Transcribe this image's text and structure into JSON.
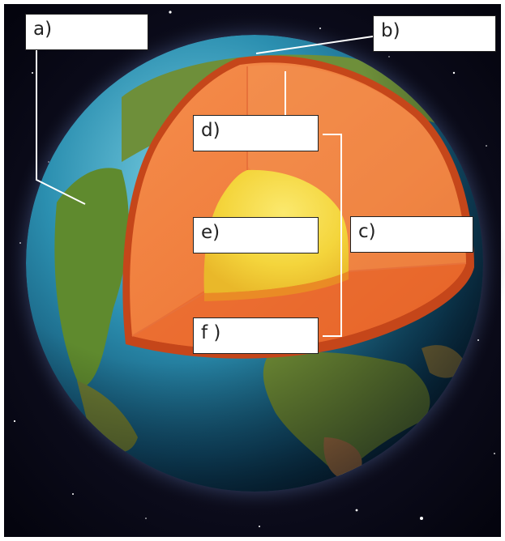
{
  "labels": {
    "a": "a)",
    "b": "b)",
    "c": "c)",
    "d": "d)",
    "e": "e)",
    "f": "f )"
  },
  "colors": {
    "space": "#05050f",
    "ocean": "#2c86a3",
    "land": "#5a8a2c",
    "crust": "#c04010",
    "mantle": "#f07c3a",
    "outer_core": "#f08a20",
    "inner_core": "#f6d23a",
    "leader_line": "#ffffff"
  }
}
